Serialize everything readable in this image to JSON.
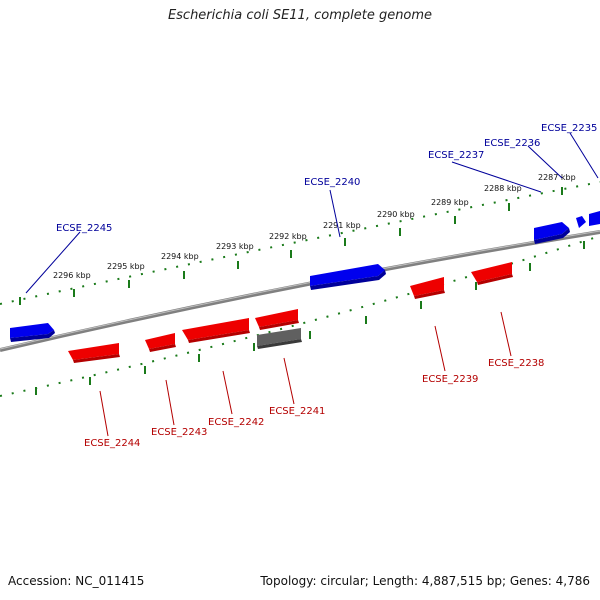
{
  "title": "Escherichia coli SE11, complete genome",
  "footer": {
    "accession": "Accession: NC_011415",
    "topology": "Topology: circular; Length: 4,887,515 bp; Genes: 4,786"
  },
  "colors": {
    "forward_gene": "#0000ee",
    "reverse_gene": "#ee0000",
    "other_gene": "#555555",
    "backbone": "#808080",
    "ticks": "#1a7a1a",
    "forward_label": "#00009a",
    "reverse_label": "#b40000"
  },
  "scale_labels": [
    "2287 kbp",
    "2288 kbp",
    "2289 kbp",
    "2290 kbp",
    "2291 kbp",
    "2292 kbp",
    "2293 kbp",
    "2294 kbp",
    "2295 kbp",
    "2296 kbp"
  ],
  "forward_genes": [
    {
      "label": "ECSE_2235"
    },
    {
      "label": "ECSE_2236"
    },
    {
      "label": "ECSE_2237"
    },
    {
      "label": "ECSE_2240"
    },
    {
      "label": "ECSE_2245"
    }
  ],
  "reverse_genes": [
    {
      "label": "ECSE_2238"
    },
    {
      "label": "ECSE_2239"
    },
    {
      "label": "ECSE_2241"
    },
    {
      "label": "ECSE_2242"
    },
    {
      "label": "ECSE_2243"
    },
    {
      "label": "ECSE_2244"
    }
  ]
}
